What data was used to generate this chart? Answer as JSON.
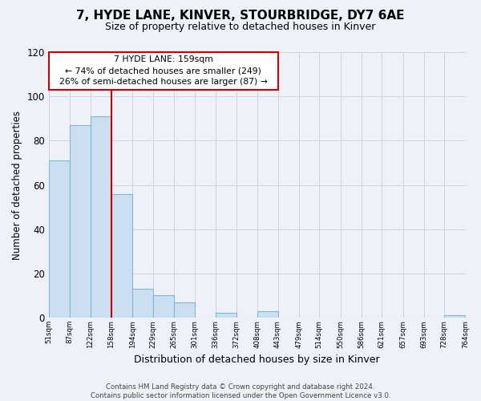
{
  "title": "7, HYDE LANE, KINVER, STOURBRIDGE, DY7 6AE",
  "subtitle": "Size of property relative to detached houses in Kinver",
  "xlabel": "Distribution of detached houses by size in Kinver",
  "ylabel": "Number of detached properties",
  "bin_edges": [
    51,
    87,
    122,
    158,
    194,
    229,
    265,
    301,
    336,
    372,
    408,
    443,
    479,
    514,
    550,
    586,
    621,
    657,
    693,
    728,
    764
  ],
  "bin_labels": [
    "51sqm",
    "87sqm",
    "122sqm",
    "158sqm",
    "194sqm",
    "229sqm",
    "265sqm",
    "301sqm",
    "336sqm",
    "372sqm",
    "408sqm",
    "443sqm",
    "479sqm",
    "514sqm",
    "550sqm",
    "586sqm",
    "621sqm",
    "657sqm",
    "693sqm",
    "728sqm",
    "764sqm"
  ],
  "counts": [
    71,
    87,
    91,
    56,
    13,
    10,
    7,
    0,
    2,
    0,
    3,
    0,
    0,
    0,
    0,
    0,
    0,
    0,
    0,
    1
  ],
  "bar_color": "#ccdff0",
  "bar_edge_color": "#7fb8d8",
  "property_line_x": 158,
  "property_line_color": "#cc0000",
  "ann_line1": "7 HYDE LANE: 159sqm",
  "ann_line2": "← 74% of detached houses are smaller (249)",
  "ann_line3": "26% of semi-detached houses are larger (87) →",
  "annotation_box_color": "white",
  "annotation_box_edge_color": "#cc0000",
  "ylim": [
    0,
    120
  ],
  "yticks": [
    0,
    20,
    40,
    60,
    80,
    100,
    120
  ],
  "footer_text": "Contains HM Land Registry data © Crown copyright and database right 2024.\nContains public sector information licensed under the Open Government Licence v3.0.",
  "grid_color": "#c8d4e8",
  "background_color": "#eef2f8",
  "title_fontsize": 11,
  "subtitle_fontsize": 9
}
